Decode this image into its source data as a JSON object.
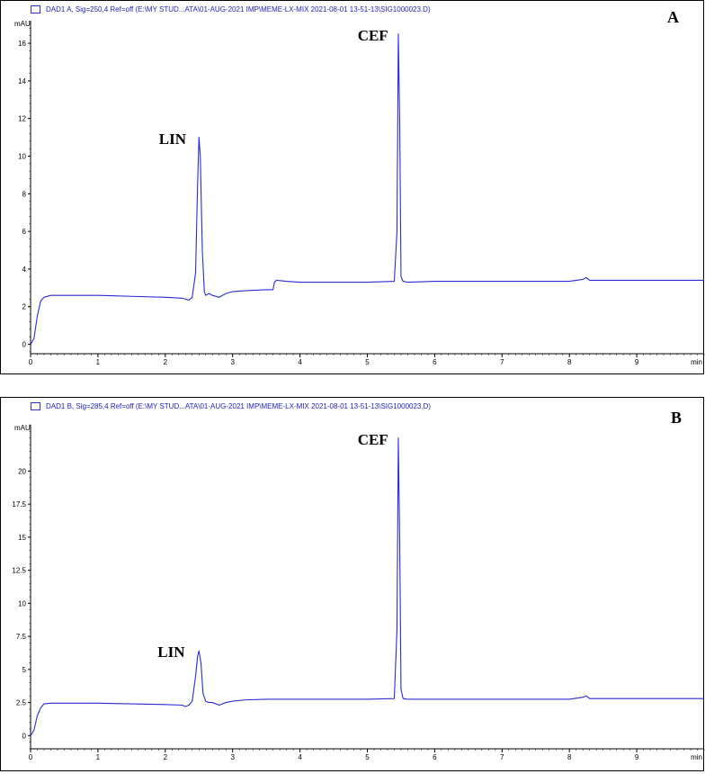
{
  "panels": [
    {
      "legend": "DAD1 A, Sig=250,4 Ref=off (E:\\MY STUD...ATA\\01-AUG-2021 IMP\\MEME-LX-MIX 2021-08-01 13-51-13\\SIG1000023.D)",
      "letter": "A",
      "ylabel": "mAU",
      "xunit": "min",
      "peak_labels": [
        "LIN",
        "CEF"
      ]
    },
    {
      "legend": "DAD1 B, Sig=285,4 Ref=off (E:\\MY STUD...ATA\\01-AUG-2021 IMP\\MEME-LX-MIX 2021-08-01 13-51-13\\SIG1000023.D)",
      "letter": "B",
      "ylabel": "mAU",
      "xunit": "min",
      "peak_labels": [
        "LIN",
        "CEF"
      ]
    }
  ],
  "colors": {
    "trace": "#2b2bd6",
    "axis": "#000000",
    "frame": "#000000"
  },
  "chart_data": [
    {
      "type": "line",
      "xlim": [
        0,
        10
      ],
      "ylim": [
        -0.5,
        17.2
      ],
      "xticks": [
        0,
        1,
        2,
        3,
        4,
        5,
        6,
        7,
        8,
        9
      ],
      "yticks": [
        0,
        2,
        4,
        6,
        8,
        10,
        12,
        14,
        16
      ],
      "ytick_labels": [
        "0",
        "2",
        "4",
        "6",
        "8",
        "10",
        "12",
        "14",
        "16"
      ],
      "series": [
        {
          "x": [
            0,
            0.05,
            0.1,
            0.15,
            0.2,
            0.3,
            0.5,
            1.0,
            1.5,
            2.0,
            2.25,
            2.3,
            2.35,
            2.4,
            2.45,
            2.48,
            2.5,
            2.52,
            2.55,
            2.58,
            2.6,
            2.65,
            2.7,
            2.8,
            2.9,
            3.0,
            3.2,
            3.5,
            3.6,
            3.62,
            3.65,
            3.8,
            4.0,
            4.5,
            5.0,
            5.4,
            5.44,
            5.46,
            5.48,
            5.5,
            5.53,
            5.6,
            6.0,
            7.0,
            8.0,
            8.2,
            8.25,
            8.3,
            9.0,
            10.0
          ],
          "y": [
            0.0,
            0.3,
            1.5,
            2.3,
            2.5,
            2.6,
            2.6,
            2.6,
            2.55,
            2.5,
            2.45,
            2.4,
            2.35,
            2.5,
            3.8,
            8.5,
            11.0,
            10.0,
            5.0,
            2.8,
            2.6,
            2.7,
            2.6,
            2.5,
            2.7,
            2.8,
            2.85,
            2.9,
            2.9,
            3.3,
            3.4,
            3.35,
            3.3,
            3.3,
            3.3,
            3.35,
            6.0,
            16.5,
            12.0,
            3.6,
            3.35,
            3.3,
            3.35,
            3.35,
            3.35,
            3.45,
            3.55,
            3.4,
            3.4,
            3.4
          ]
        }
      ],
      "annotations": [
        {
          "text": "LIN",
          "x": 2.52,
          "y": 11.0
        },
        {
          "text": "CEF",
          "x": 5.47,
          "y": 16.5
        }
      ],
      "xlabel": "min",
      "ylabel": "mAU",
      "grid": false
    },
    {
      "type": "line",
      "xlim": [
        0,
        10
      ],
      "ylim": [
        -1.0,
        23.5
      ],
      "xticks": [
        0,
        1,
        2,
        3,
        4,
        5,
        6,
        7,
        8,
        9
      ],
      "yticks": [
        0,
        2.5,
        5,
        7.5,
        10,
        12.5,
        15,
        17.5,
        20
      ],
      "ytick_labels": [
        "0",
        "2.5",
        "5",
        "7.5",
        "10",
        "12.5",
        "15",
        "17.5",
        "20"
      ],
      "series": [
        {
          "x": [
            0,
            0.05,
            0.1,
            0.15,
            0.2,
            0.3,
            0.5,
            1.0,
            1.5,
            2.0,
            2.25,
            2.3,
            2.35,
            2.4,
            2.45,
            2.48,
            2.5,
            2.53,
            2.56,
            2.6,
            2.65,
            2.7,
            2.8,
            2.9,
            3.0,
            3.2,
            3.5,
            4.0,
            4.5,
            5.0,
            5.4,
            5.44,
            5.46,
            5.48,
            5.5,
            5.53,
            5.6,
            6.0,
            7.0,
            8.0,
            8.2,
            8.25,
            8.3,
            9.0,
            10.0
          ],
          "y": [
            0.0,
            0.4,
            1.5,
            2.1,
            2.4,
            2.45,
            2.45,
            2.45,
            2.4,
            2.35,
            2.3,
            2.2,
            2.3,
            2.6,
            4.5,
            6.0,
            6.4,
            5.5,
            3.2,
            2.6,
            2.5,
            2.5,
            2.3,
            2.5,
            2.6,
            2.7,
            2.75,
            2.75,
            2.75,
            2.75,
            2.8,
            8.0,
            22.5,
            15.0,
            3.5,
            2.8,
            2.75,
            2.75,
            2.75,
            2.75,
            2.9,
            3.0,
            2.8,
            2.8,
            2.8
          ]
        }
      ],
      "annotations": [
        {
          "text": "LIN",
          "x": 2.5,
          "y": 6.4
        },
        {
          "text": "CEF",
          "x": 5.47,
          "y": 22.5
        }
      ],
      "xlabel": "min",
      "ylabel": "mAU",
      "grid": false
    }
  ]
}
